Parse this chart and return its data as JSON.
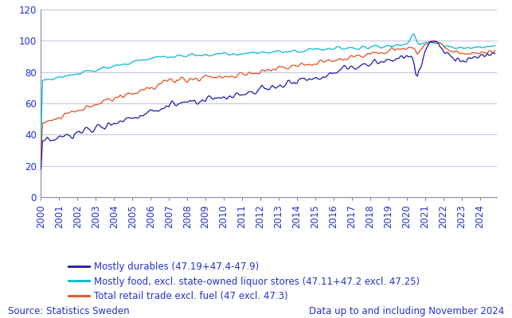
{
  "source_text": "Source: Statistics Sweden",
  "data_note": "Data up to and including November 2024",
  "ylim": [
    0,
    120
  ],
  "yticks": [
    0,
    20,
    40,
    60,
    80,
    100,
    120
  ],
  "background_color": "#ffffff",
  "grid_color": "#c0c0e0",
  "text_color": "#2233cc",
  "line_colors": {
    "durables": "#1a1aaa",
    "food": "#00b8d4",
    "total": "#e05020"
  },
  "legend_labels": {
    "durables": "Mostly durables (47.19+47.4-47.9)",
    "food": "Mostly food, excl. state-owned liquor stores (47.11+47.2 excl. 47.25)",
    "total": "Total retail trade excl. fuel (47 excl. 47.3)"
  },
  "tick_label_color": "#2233cc",
  "font_size_legend": 8.5,
  "font_size_source": 8.5,
  "font_size_ticks": 8.5,
  "spine_color": "#8888aa",
  "axis_text_color": "#2233cc"
}
